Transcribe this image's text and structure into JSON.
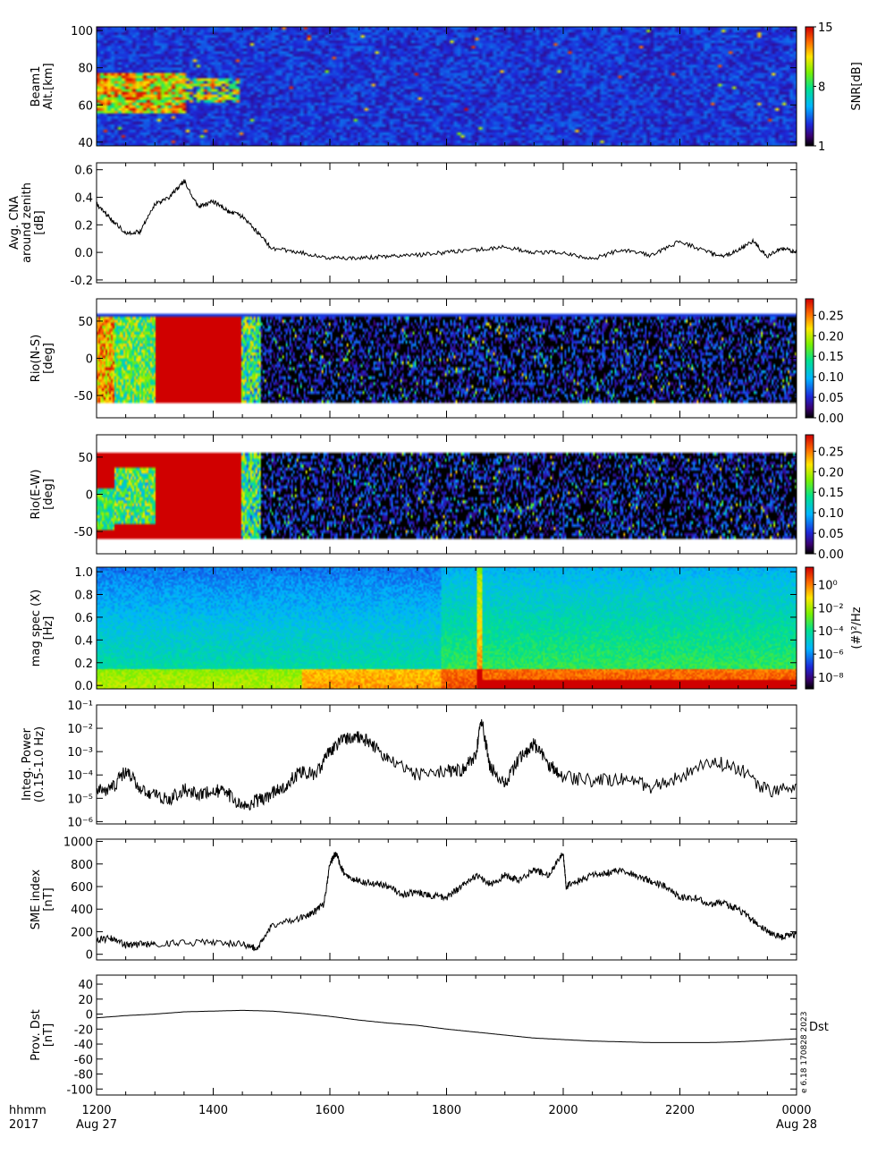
{
  "stamp": "e 6.18 170828 2023",
  "chart_data": [
    {
      "type": "heatmap",
      "ylabel": [
        "Beam1",
        "Alt.[km]"
      ],
      "ylim": [
        38,
        102
      ],
      "yticks": [
        40,
        60,
        80,
        100
      ],
      "colorbar": {
        "label": "SNR[dB]",
        "range": [
          1,
          15
        ],
        "ticks": [
          "15",
          "8",
          "1"
        ]
      }
    },
    {
      "type": "line",
      "ylabel": [
        "Avg. CNA",
        "around zenith",
        "[dB]"
      ],
      "ylim": [
        -0.22,
        0.65
      ],
      "yticks": [
        "0.6",
        "0.4",
        "0.2",
        "0.0",
        "-0.2"
      ],
      "series": [
        {
          "x": [
            12.0,
            12.25,
            12.5,
            12.75,
            13.0,
            13.25,
            13.5,
            13.75,
            14.0,
            14.25,
            14.5,
            14.75,
            15.0,
            15.5,
            16.0,
            16.5,
            17.0,
            17.5,
            18.0,
            18.5,
            19.0,
            19.5,
            20.0,
            20.5,
            21.0,
            21.5,
            22.0,
            22.5,
            22.75,
            23.0,
            23.25,
            23.5,
            23.75,
            24.0
          ],
          "y": [
            0.35,
            0.24,
            0.14,
            0.15,
            0.35,
            0.4,
            0.52,
            0.33,
            0.37,
            0.3,
            0.26,
            0.15,
            0.03,
            0.0,
            -0.04,
            -0.04,
            -0.03,
            -0.02,
            0.0,
            0.02,
            0.04,
            0.0,
            0.0,
            -0.05,
            0.02,
            -0.02,
            0.08,
            0.0,
            -0.03,
            0.02,
            0.08,
            -0.03,
            0.03,
            0.0
          ]
        }
      ]
    },
    {
      "type": "heatmap",
      "ylabel": [
        "Rio(N-S)",
        "[deg]"
      ],
      "ylim": [
        -80,
        80
      ],
      "yticks": [
        "50",
        "0",
        "-50"
      ],
      "colorbar": {
        "range": [
          0,
          0.29
        ],
        "ticks": [
          "0.25",
          "0.20",
          "0.15",
          "0.10",
          "0.05",
          "0.00"
        ]
      }
    },
    {
      "type": "heatmap",
      "ylabel": [
        "Rio(E-W)",
        "[deg]"
      ],
      "ylim": [
        -80,
        80
      ],
      "yticks": [
        "50",
        "0",
        "-50"
      ],
      "colorbar": {
        "range": [
          0,
          0.29
        ],
        "ticks": [
          "0.25",
          "0.20",
          "0.15",
          "0.10",
          "0.05",
          "0.00"
        ]
      }
    },
    {
      "type": "heatmap",
      "ylabel": [
        "mag spec (X)",
        "[Hz]"
      ],
      "ylim": [
        -0.03,
        1.04
      ],
      "yticks": [
        "1.0",
        "0.8",
        "0.6",
        "0.4",
        "0.2",
        "0.0"
      ],
      "colorbar": {
        "label": "(#)²/Hz",
        "range": [
          -9,
          1.5
        ],
        "ticks": [
          "10⁰",
          "10⁻²",
          "10⁻⁴",
          "10⁻⁶",
          "10⁻⁸"
        ]
      }
    },
    {
      "type": "line",
      "ylabel": [
        "Integ. Power",
        "(0.15-1.0 Hz)"
      ],
      "ylim": [
        -6.1,
        -1.0
      ],
      "log": true,
      "yticks": [
        "10⁻¹",
        "10⁻²",
        "10⁻³",
        "10⁻⁴",
        "10⁻⁵",
        "10⁻⁶"
      ],
      "series": [
        {
          "x": [
            12.0,
            12.25,
            12.5,
            12.75,
            13.0,
            13.25,
            13.5,
            13.75,
            14.0,
            14.25,
            14.5,
            14.75,
            15.0,
            15.25,
            15.5,
            15.75,
            16.0,
            16.25,
            16.5,
            16.75,
            17.0,
            17.5,
            18.0,
            18.25,
            18.5,
            18.6,
            18.75,
            19.0,
            19.25,
            19.5,
            19.75,
            20.0,
            20.5,
            21.0,
            21.5,
            22.0,
            22.5,
            23.0,
            23.5,
            24.0
          ],
          "y": [
            2.5e-05,
            2.3e-05,
            0.00015,
            3e-05,
            1.2e-05,
            9e-06,
            2.5e-05,
            1.2e-05,
            2.5e-05,
            1.5e-05,
            5e-06,
            8e-06,
            1.5e-05,
            4e-05,
            0.00015,
            0.0001,
            0.001,
            0.004,
            0.004,
            0.002,
            0.0004,
            0.0001,
            0.00015,
            0.00015,
            0.0006,
            0.025,
            0.0002,
            4e-05,
            0.0005,
            0.002,
            0.0003,
            8e-05,
            6e-05,
            7e-05,
            3e-05,
            8e-05,
            0.0004,
            0.0002,
            2e-05,
            4e-05
          ]
        }
      ]
    },
    {
      "type": "line",
      "ylabel": [
        "SME index",
        "[nT]"
      ],
      "ylim": [
        -50,
        1020
      ],
      "yticks": [
        "1000",
        "800",
        "600",
        "400",
        "200",
        "0"
      ],
      "series": [
        {
          "x": [
            12.0,
            12.25,
            12.5,
            12.75,
            13.0,
            13.5,
            14.0,
            14.5,
            14.75,
            15.0,
            15.5,
            15.75,
            15.9,
            16.0,
            16.1,
            16.25,
            16.5,
            16.75,
            17.0,
            17.25,
            17.5,
            17.75,
            18.0,
            18.25,
            18.5,
            18.75,
            19.0,
            19.25,
            19.5,
            19.75,
            20.0,
            20.05,
            20.25,
            20.5,
            20.75,
            21.0,
            21.25,
            21.5,
            21.75,
            22.0,
            22.25,
            22.5,
            22.75,
            23.0,
            23.25,
            23.5,
            23.75,
            24.0
          ],
          "y": [
            130,
            140,
            80,
            90,
            90,
            100,
            110,
            90,
            50,
            250,
            320,
            380,
            450,
            800,
            900,
            700,
            650,
            630,
            600,
            530,
            550,
            520,
            500,
            600,
            700,
            620,
            700,
            650,
            750,
            700,
            900,
            600,
            650,
            700,
            720,
            750,
            700,
            650,
            600,
            500,
            500,
            450,
            450,
            400,
            300,
            200,
            150,
            180
          ]
        }
      ]
    },
    {
      "type": "line",
      "ylabel": [
        "Prov. Dst",
        "[nT]"
      ],
      "ylim": [
        -108,
        52
      ],
      "yticks": [
        "40",
        "20",
        "0",
        "-20",
        "-40",
        "-60",
        "-80",
        "-100"
      ],
      "side_label": "Dst",
      "series": [
        {
          "x": [
            12.0,
            12.5,
            13.0,
            13.5,
            14.0,
            14.5,
            15.0,
            15.5,
            16.0,
            16.5,
            17.0,
            17.5,
            18.0,
            18.5,
            19.0,
            19.5,
            20.0,
            20.5,
            21.0,
            21.5,
            22.0,
            22.5,
            23.0,
            23.5,
            24.0
          ],
          "y": [
            -5,
            -2,
            0,
            3,
            4,
            5,
            4,
            1,
            -3,
            -8,
            -12,
            -15,
            -20,
            -24,
            -28,
            -32,
            -34,
            -36,
            -37,
            -38,
            -38,
            -38,
            -37,
            -35,
            -33
          ]
        }
      ]
    }
  ],
  "xaxis": {
    "corner_label": [
      "hhmm",
      "2017"
    ],
    "ticks": [
      {
        "x": 12,
        "label": "1200",
        "sub": "Aug 27"
      },
      {
        "x": 14,
        "label": "1400",
        "sub": ""
      },
      {
        "x": 16,
        "label": "1600",
        "sub": ""
      },
      {
        "x": 18,
        "label": "1800",
        "sub": ""
      },
      {
        "x": 20,
        "label": "2000",
        "sub": ""
      },
      {
        "x": 22,
        "label": "2200",
        "sub": ""
      },
      {
        "x": 24,
        "label": "0000",
        "sub": "Aug 28"
      }
    ]
  }
}
